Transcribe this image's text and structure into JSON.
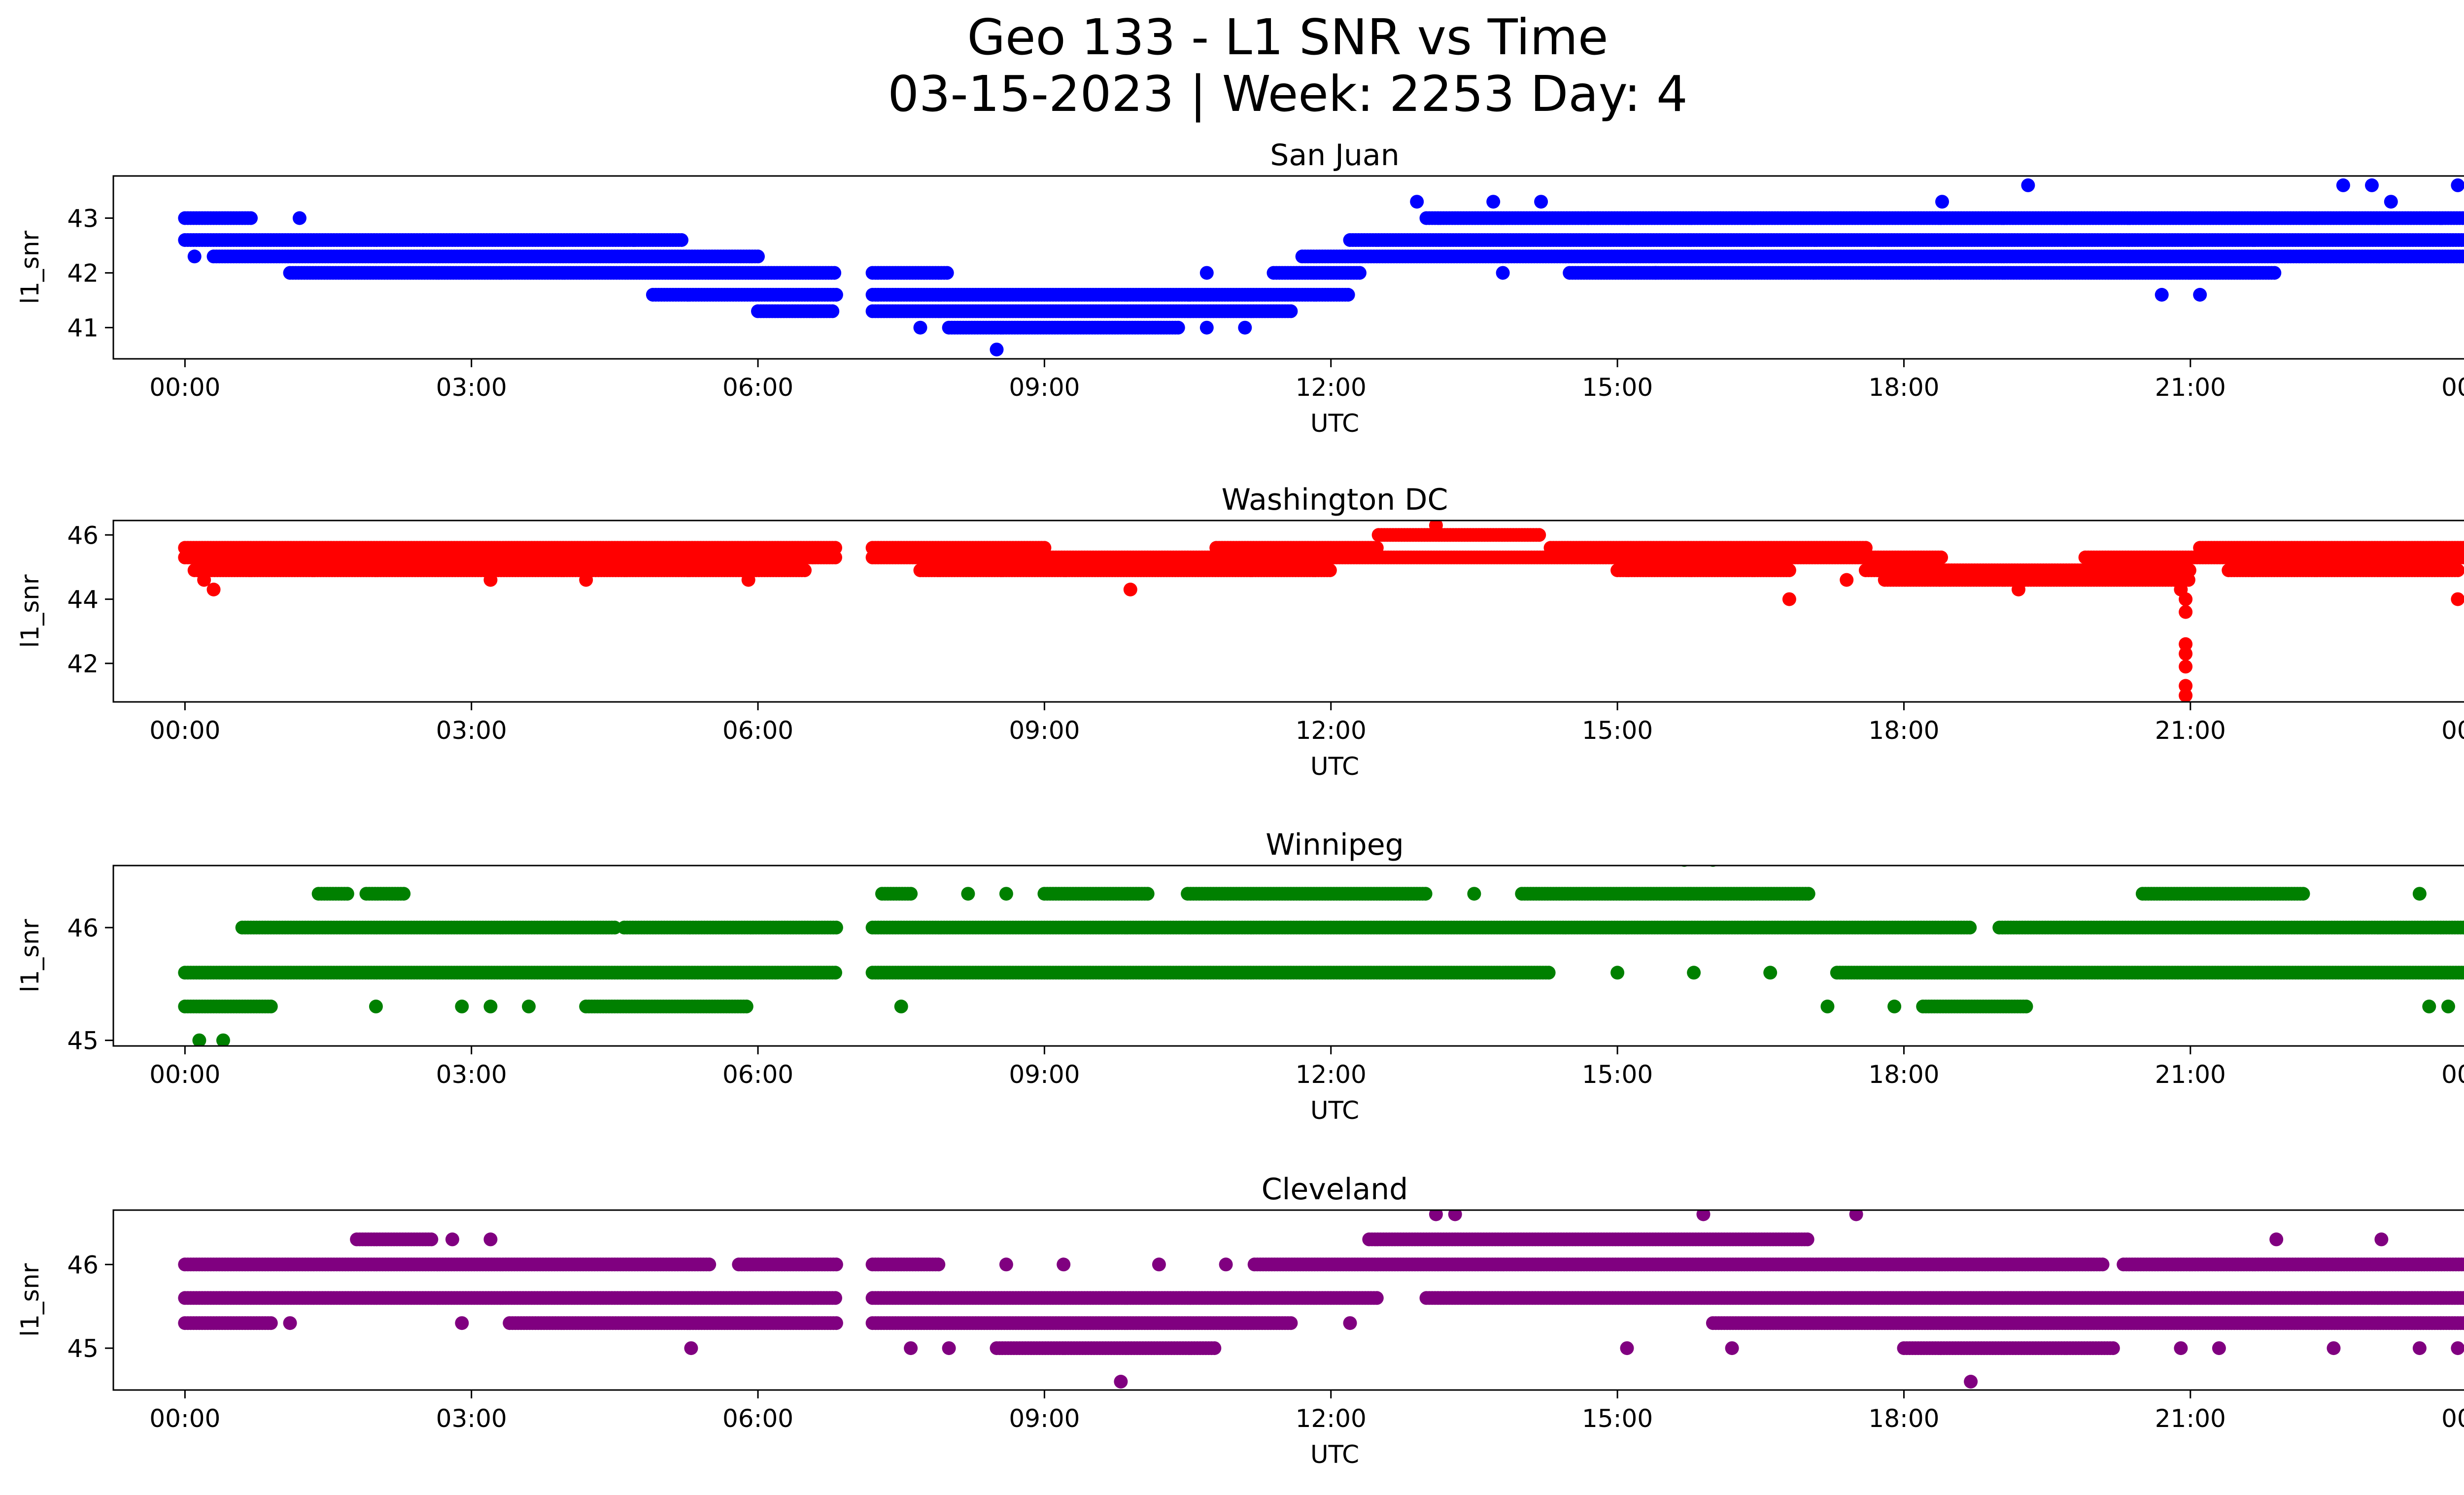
{
  "figure": {
    "title_line1": "Geo 133 - L1 SNR vs Time",
    "title_line2": "03-15-2023 | Week: 2253 Day: 4"
  },
  "chart_data": [
    {
      "type": "scatter",
      "title": "San Juan",
      "xlabel": "UTC",
      "ylabel": "l1_snr",
      "color": "#0000ff",
      "xlim": [
        -0.75,
        24.83
      ],
      "ylim": [
        40.43,
        43.77
      ],
      "x_ticks": [
        0,
        3,
        6,
        9,
        12,
        15,
        18,
        21,
        24
      ],
      "x_tick_labels": [
        "00:00",
        "03:00",
        "06:00",
        "09:00",
        "12:00",
        "15:00",
        "18:00",
        "21:00",
        "00:00"
      ],
      "y_ticks": [
        41,
        42,
        43
      ],
      "gaps": [
        [
          6.83,
          7.2
        ]
      ],
      "bands": [
        {
          "y": 43.0,
          "ranges": [
            [
              0,
              0.7
            ],
            [
              13.0,
              14.7
            ],
            [
              14.7,
              24.0
            ]
          ]
        },
        {
          "y": 42.6,
          "ranges": [
            [
              0,
              2.5
            ],
            [
              2.5,
              5.2
            ],
            [
              12.2,
              24.0
            ]
          ]
        },
        {
          "y": 42.3,
          "ranges": [
            [
              0.3,
              6.0
            ],
            [
              11.7,
              24.0
            ]
          ]
        },
        {
          "y": 42.0,
          "ranges": [
            [
              1.1,
              6.83
            ],
            [
              7.2,
              8.0
            ],
            [
              11.4,
              12.3
            ],
            [
              14.5,
              21.9
            ]
          ]
        },
        {
          "y": 41.6,
          "ranges": [
            [
              4.9,
              6.83
            ],
            [
              7.2,
              12.2
            ]
          ]
        },
        {
          "y": 41.3,
          "ranges": [
            [
              6.0,
              6.8
            ],
            [
              7.2,
              11.6
            ]
          ]
        },
        {
          "y": 41.0,
          "ranges": [
            [
              8.0,
              10.4
            ]
          ]
        }
      ],
      "points": [
        [
          0.1,
          42.3
        ],
        [
          1.2,
          43.0
        ],
        [
          4.7,
          42.6
        ],
        [
          8.5,
          40.6
        ],
        [
          7.7,
          41.0
        ],
        [
          10.7,
          41.0
        ],
        [
          11.1,
          41.0
        ],
        [
          10.7,
          42.0
        ],
        [
          12.9,
          43.3
        ],
        [
          13.7,
          43.3
        ],
        [
          14.2,
          43.3
        ],
        [
          13.8,
          42.0
        ],
        [
          15.4,
          42.0
        ],
        [
          18.4,
          43.3
        ],
        [
          19.3,
          43.6
        ],
        [
          20.7,
          41.6
        ],
        [
          21.1,
          41.6
        ],
        [
          22.6,
          43.6
        ],
        [
          22.9,
          43.6
        ],
        [
          23.8,
          43.6
        ],
        [
          23.1,
          43.3
        ]
      ]
    },
    {
      "type": "scatter",
      "title": "Washington DC",
      "xlabel": "UTC",
      "ylabel": "l1_snr",
      "color": "#ff0000",
      "xlim": [
        -0.75,
        24.83
      ],
      "ylim": [
        40.8,
        46.45
      ],
      "x_ticks": [
        0,
        3,
        6,
        9,
        12,
        15,
        18,
        21,
        24
      ],
      "x_tick_labels": [
        "00:00",
        "03:00",
        "06:00",
        "09:00",
        "12:00",
        "15:00",
        "18:00",
        "21:00",
        "00:00"
      ],
      "y_ticks": [
        42,
        44,
        46
      ],
      "gaps": [
        [
          6.83,
          7.2
        ]
      ],
      "bands": [
        {
          "y": 45.6,
          "ranges": [
            [
              0,
              6.83
            ],
            [
              7.2,
              9.0
            ],
            [
              10.8,
              12.5
            ],
            [
              14.3,
              17.6
            ],
            [
              21.1,
              24.0
            ]
          ]
        },
        {
          "y": 45.3,
          "ranges": [
            [
              0,
              6.83
            ],
            [
              7.2,
              18.4
            ],
            [
              19.9,
              24.0
            ]
          ]
        },
        {
          "y": 44.9,
          "ranges": [
            [
              0.1,
              6.5
            ],
            [
              7.7,
              12.0
            ],
            [
              15.0,
              16.8
            ],
            [
              17.6,
              21.0
            ],
            [
              21.4,
              23.8
            ]
          ]
        },
        {
          "y": 44.6,
          "ranges": [
            [
              17.8,
              21.0
            ]
          ]
        },
        {
          "y": 46.0,
          "ranges": [
            [
              12.5,
              14.2
            ]
          ]
        }
      ],
      "points": [
        [
          0.2,
          44.6
        ],
        [
          0.3,
          44.3
        ],
        [
          3.2,
          44.6
        ],
        [
          4.2,
          44.6
        ],
        [
          5.9,
          44.6
        ],
        [
          9.9,
          44.3
        ],
        [
          13.1,
          46.3
        ],
        [
          16.8,
          44.0
        ],
        [
          17.4,
          44.6
        ],
        [
          19.2,
          44.3
        ],
        [
          20.9,
          44.3
        ],
        [
          20.95,
          44.0
        ],
        [
          20.95,
          43.6
        ],
        [
          20.95,
          42.6
        ],
        [
          20.95,
          42.3
        ],
        [
          20.95,
          41.9
        ],
        [
          20.95,
          41.3
        ],
        [
          20.95,
          41.0
        ],
        [
          23.8,
          44.0
        ]
      ]
    },
    {
      "type": "scatter",
      "title": "Winnipeg",
      "xlabel": "UTC",
      "ylabel": "l1_snr",
      "color": "#008000",
      "xlim": [
        -0.75,
        24.83
      ],
      "ylim": [
        44.95,
        46.55
      ],
      "x_ticks": [
        0,
        3,
        6,
        9,
        12,
        15,
        18,
        21,
        24
      ],
      "x_tick_labels": [
        "00:00",
        "03:00",
        "06:00",
        "09:00",
        "12:00",
        "15:00",
        "18:00",
        "21:00",
        "00:00"
      ],
      "y_ticks": [
        45,
        46
      ],
      "gaps": [
        [
          6.83,
          7.2
        ]
      ],
      "bands": [
        {
          "y": 46.3,
          "ranges": [
            [
              1.4,
              1.7
            ],
            [
              1.9,
              2.3
            ],
            [
              7.3,
              7.6
            ],
            [
              9.0,
              10.1
            ],
            [
              10.5,
              13.0
            ],
            [
              14.0,
              17.0
            ],
            [
              20.5,
              22.2
            ]
          ]
        },
        {
          "y": 46.0,
          "ranges": [
            [
              0.6,
              4.5
            ],
            [
              4.6,
              6.83
            ],
            [
              7.2,
              18.7
            ],
            [
              19.0,
              24.0
            ]
          ]
        },
        {
          "y": 45.6,
          "ranges": [
            [
              0,
              6.83
            ],
            [
              7.2,
              14.3
            ],
            [
              17.3,
              24.0
            ]
          ]
        },
        {
          "y": 45.3,
          "ranges": [
            [
              0,
              0.9
            ],
            [
              4.2,
              5.9
            ],
            [
              18.2,
              19.3
            ]
          ]
        },
        {
          "y": 45.0,
          "ranges": []
        }
      ],
      "points": [
        [
          0.15,
          45.0
        ],
        [
          0.4,
          45.0
        ],
        [
          2.0,
          45.3
        ],
        [
          2.9,
          45.3
        ],
        [
          3.2,
          45.3
        ],
        [
          3.6,
          45.3
        ],
        [
          7.5,
          45.3
        ],
        [
          8.2,
          46.3
        ],
        [
          8.6,
          46.3
        ],
        [
          13.5,
          46.3
        ],
        [
          15.7,
          46.6
        ],
        [
          16.0,
          46.6
        ],
        [
          15.8,
          45.6
        ],
        [
          17.2,
          45.3
        ],
        [
          17.9,
          45.3
        ],
        [
          23.4,
          46.3
        ],
        [
          23.5,
          45.3
        ],
        [
          23.7,
          45.3
        ],
        [
          15.0,
          45.6
        ],
        [
          16.6,
          45.6
        ]
      ]
    },
    {
      "type": "scatter",
      "title": "Cleveland",
      "xlabel": "UTC",
      "ylabel": "l1_snr",
      "color": "#800080",
      "xlim": [
        -0.75,
        24.83
      ],
      "ylim": [
        44.5,
        46.65
      ],
      "x_ticks": [
        0,
        3,
        6,
        9,
        12,
        15,
        18,
        21,
        24
      ],
      "x_tick_labels": [
        "00:00",
        "03:00",
        "06:00",
        "09:00",
        "12:00",
        "15:00",
        "18:00",
        "21:00",
        "00:00"
      ],
      "y_ticks": [
        45,
        46
      ],
      "gaps": [
        [
          6.83,
          7.2
        ]
      ],
      "bands": [
        {
          "y": 46.0,
          "ranges": [
            [
              0,
              5.5
            ],
            [
              5.8,
              6.83
            ],
            [
              7.2,
              7.9
            ],
            [
              11.2,
              20.1
            ],
            [
              20.3,
              24.0
            ]
          ]
        },
        {
          "y": 45.6,
          "ranges": [
            [
              0,
              6.83
            ],
            [
              7.2,
              12.5
            ],
            [
              13.0,
              24.0
            ]
          ]
        },
        {
          "y": 45.3,
          "ranges": [
            [
              0,
              0.9
            ],
            [
              3.4,
              6.83
            ],
            [
              7.2,
              11.6
            ],
            [
              16.0,
              23.9
            ]
          ]
        },
        {
          "y": 45.0,
          "ranges": [
            [
              8.5,
              10.8
            ],
            [
              18.0,
              20.2
            ]
          ]
        },
        {
          "y": 46.3,
          "ranges": [
            [
              1.8,
              2.6
            ],
            [
              12.4,
              17.0
            ]
          ]
        }
      ],
      "points": [
        [
          1.1,
          45.3
        ],
        [
          2.8,
          46.3
        ],
        [
          3.2,
          46.3
        ],
        [
          2.9,
          45.3
        ],
        [
          5.3,
          45.0
        ],
        [
          7.6,
          45.0
        ],
        [
          8.0,
          45.0
        ],
        [
          8.6,
          46.0
        ],
        [
          9.2,
          46.0
        ],
        [
          9.8,
          44.6
        ],
        [
          10.2,
          46.0
        ],
        [
          10.9,
          46.0
        ],
        [
          12.2,
          45.3
        ],
        [
          13.1,
          46.6
        ],
        [
          13.3,
          46.6
        ],
        [
          15.1,
          45.0
        ],
        [
          15.9,
          46.6
        ],
        [
          16.2,
          45.0
        ],
        [
          17.5,
          46.6
        ],
        [
          18.7,
          44.6
        ],
        [
          20.9,
          45.0
        ],
        [
          21.3,
          45.0
        ],
        [
          22.5,
          45.0
        ],
        [
          23.4,
          45.0
        ],
        [
          23.8,
          45.0
        ],
        [
          21.9,
          46.3
        ],
        [
          23.0,
          46.3
        ],
        [
          24.0,
          46.3
        ]
      ]
    }
  ]
}
